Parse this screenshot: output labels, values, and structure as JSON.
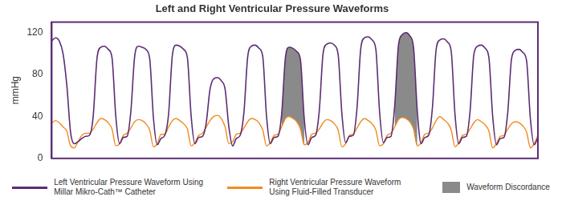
{
  "chart_data": {
    "type": "line",
    "title": "Left and Right Ventricular Pressure Waveforms",
    "y_label": "mmHg",
    "x": [
      0,
      5,
      10,
      15,
      20,
      25,
      30,
      35,
      40,
      45,
      50,
      55,
      60,
      65,
      70,
      75,
      80,
      85,
      90,
      95,
      100,
      105,
      110,
      115,
      120,
      125,
      130,
      135,
      140,
      145,
      150,
      155,
      160,
      165,
      170,
      175,
      180,
      185,
      190,
      195,
      200,
      205,
      210,
      215,
      220,
      225,
      230,
      235,
      240,
      245,
      250,
      255,
      260,
      265,
      270,
      275,
      280,
      285,
      290,
      295,
      300,
      305,
      310,
      315,
      320,
      325,
      330,
      335,
      340,
      345,
      350,
      355,
      360,
      365,
      370,
      375,
      380,
      385,
      390,
      395,
      400,
      405,
      410,
      415,
      420,
      425,
      430,
      435,
      440,
      445,
      450,
      455,
      460,
      465,
      470,
      475,
      480,
      485,
      490,
      495,
      500,
      505,
      510,
      515,
      520,
      525,
      530,
      535,
      540,
      545,
      550,
      555,
      560,
      565,
      570,
      575,
      580,
      585,
      590,
      595,
      600,
      605,
      610,
      615,
      620,
      625,
      630,
      635,
      640,
      645
    ],
    "xlim": [
      0,
      645
    ],
    "ylim": [
      0,
      130
    ],
    "yticks": [
      0,
      40,
      80,
      120
    ],
    "grid": false,
    "tick_labels": "y",
    "legend": "bottom",
    "series": [
      {
        "name": "Left Ventricular Pressure Waveform Using Millar Mikro-Cath™ Catheter",
        "color": "#5c2d73",
        "values": [
          112,
          115,
          112,
          100,
          70,
          25,
          14,
          16,
          19,
          21,
          22,
          40,
          95,
          106,
          107,
          104,
          96,
          40,
          14,
          20,
          21,
          45,
          97,
          107,
          106,
          104,
          95,
          38,
          13,
          19,
          22,
          42,
          98,
          108,
          107,
          104,
          96,
          40,
          14,
          20,
          21,
          34,
          66,
          76,
          77,
          74,
          66,
          30,
          12,
          19,
          22,
          44,
          97,
          107,
          108,
          105,
          97,
          40,
          14,
          20,
          21,
          42,
          96,
          106,
          105,
          102,
          94,
          38,
          13,
          20,
          22,
          46,
          100,
          109,
          110,
          108,
          99,
          42,
          15,
          21,
          22,
          48,
          105,
          115,
          116,
          113,
          104,
          44,
          15,
          20,
          21,
          50,
          108,
          118,
          120,
          117,
          106,
          45,
          14,
          20,
          22,
          48,
          104,
          113,
          114,
          111,
          102,
          42,
          14,
          20,
          21,
          45,
          99,
          107,
          108,
          105,
          96,
          40,
          13,
          19,
          20,
          44,
          95,
          103,
          104,
          101,
          93,
          38,
          13,
          20
        ]
      },
      {
        "name": "Right Ventricular Pressure Waveform Using Fluid-Filled Transducer",
        "color": "#f28a1e",
        "values": [
          34,
          36,
          34,
          30,
          26,
          12,
          10,
          16,
          22,
          24,
          24,
          28,
          34,
          38,
          37,
          34,
          28,
          12,
          14,
          22,
          24,
          29,
          35,
          37,
          36,
          33,
          27,
          11,
          14,
          23,
          23,
          30,
          36,
          38,
          36,
          33,
          28,
          12,
          15,
          22,
          24,
          30,
          36,
          40,
          41,
          38,
          30,
          14,
          16,
          23,
          24,
          29,
          35,
          38,
          37,
          34,
          27,
          12,
          15,
          22,
          23,
          30,
          38,
          40,
          38,
          35,
          28,
          13,
          15,
          23,
          24,
          28,
          34,
          37,
          36,
          33,
          27,
          11,
          14,
          22,
          23,
          29,
          35,
          38,
          36,
          33,
          27,
          12,
          14,
          22,
          24,
          30,
          37,
          39,
          38,
          35,
          28,
          12,
          15,
          23,
          24,
          29,
          36,
          40,
          37,
          34,
          27,
          11,
          15,
          22,
          23,
          28,
          34,
          37,
          35,
          32,
          26,
          10,
          14,
          21,
          22,
          28,
          33,
          35,
          34,
          31,
          25,
          10,
          14,
          22
        ]
      }
    ],
    "shaded_regions": {
      "name": "Waveform Discordance",
      "color": "#8a8a8a",
      "x_ranges": [
        [
          305,
          335
        ],
        [
          455,
          485
        ]
      ]
    }
  }
}
